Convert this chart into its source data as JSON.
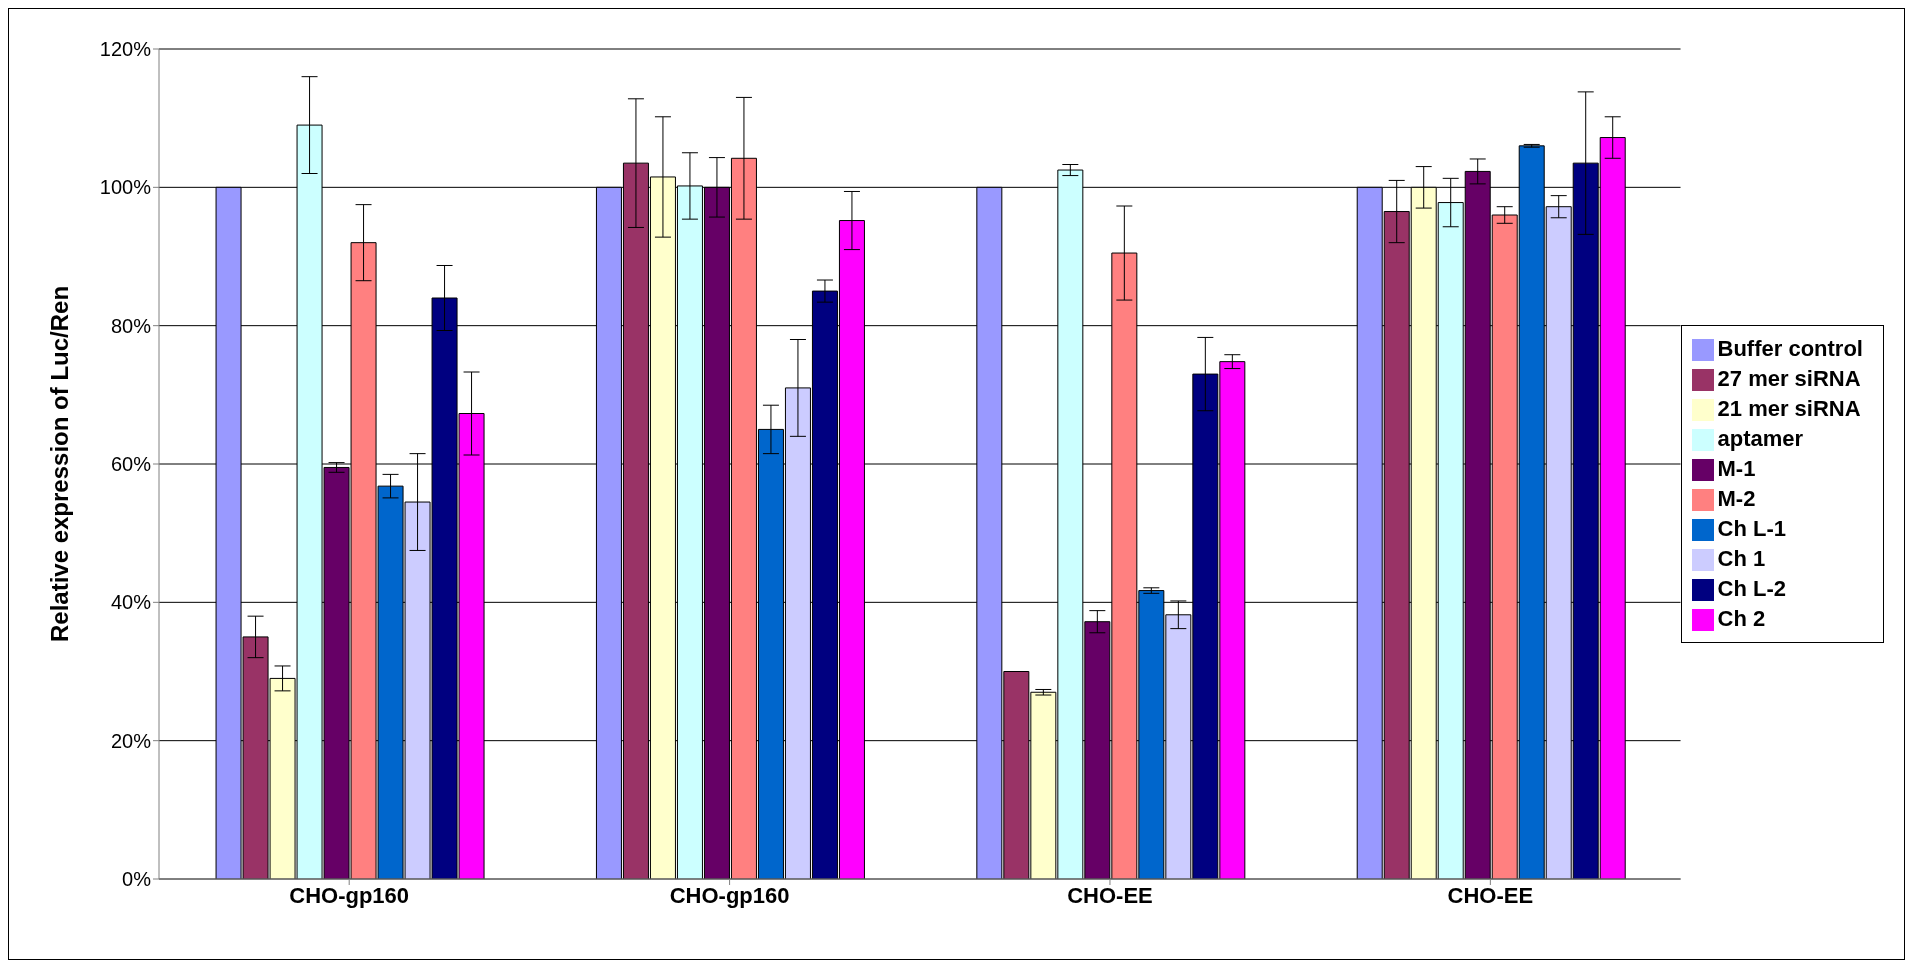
{
  "chart_data": {
    "type": "bar",
    "ylabel": "Relative expression of Luc/Ren",
    "categories": [
      "CHO-gp160",
      "CHO-gp160",
      "CHO-EE",
      "CHO-EE"
    ],
    "ylim": [
      0,
      120
    ],
    "yticks": [
      {
        "value": 0,
        "label": "0%"
      },
      {
        "value": 20,
        "label": "20%"
      },
      {
        "value": 40,
        "label": "40%"
      },
      {
        "value": 60,
        "label": "60%"
      },
      {
        "value": 80,
        "label": "80%"
      },
      {
        "value": 100,
        "label": "100%"
      },
      {
        "value": 120,
        "label": "120%"
      }
    ],
    "grid": "y",
    "legend": "right",
    "series": [
      {
        "name": "Buffer control",
        "color": "#9999ff",
        "values": [
          100,
          100,
          100,
          100
        ],
        "errors": [
          null,
          null,
          null,
          null
        ]
      },
      {
        "name": "27 mer siRNA",
        "color": "#993366",
        "values": [
          35,
          103.5,
          30,
          96.5
        ],
        "errors": [
          3,
          9.3,
          null,
          4.5
        ]
      },
      {
        "name": "21 mer siRNA",
        "color": "#ffffcc",
        "values": [
          29,
          101.5,
          27,
          100
        ],
        "errors": [
          1.8,
          8.7,
          0.4,
          3
        ]
      },
      {
        "name": "aptamer",
        "color": "#ccffff",
        "values": [
          109,
          100.2,
          102.5,
          97.8
        ],
        "errors": [
          7,
          4.8,
          0.8,
          3.5
        ]
      },
      {
        "name": "M-1",
        "color": "#660066",
        "values": [
          59.5,
          100,
          37.2,
          102.3
        ],
        "errors": [
          0.7,
          4.3,
          1.6,
          1.8
        ]
      },
      {
        "name": "M-2",
        "color": "#ff8080",
        "values": [
          92,
          104.2,
          90.5,
          96
        ],
        "errors": [
          5.5,
          8.8,
          6.8,
          1.2
        ]
      },
      {
        "name": "Ch L-1",
        "color": "#0066cc",
        "values": [
          56.8,
          65,
          41.7,
          106
        ],
        "errors": [
          1.7,
          3.5,
          0.4,
          0.2
        ]
      },
      {
        "name": "Ch 1",
        "color": "#ccccff",
        "values": [
          54.5,
          71,
          38.2,
          97.2
        ],
        "errors": [
          7,
          7,
          2,
          1.6
        ]
      },
      {
        "name": "Ch L-2",
        "color": "#000080",
        "values": [
          84,
          85,
          73,
          103.5
        ],
        "errors": [
          4.7,
          1.6,
          5.3,
          10.3
        ]
      },
      {
        "name": "Ch 2",
        "color": "#ff00ff",
        "values": [
          67.3,
          95.2,
          74.8,
          107.2
        ],
        "errors": [
          6,
          4.2,
          1,
          3
        ]
      }
    ]
  }
}
